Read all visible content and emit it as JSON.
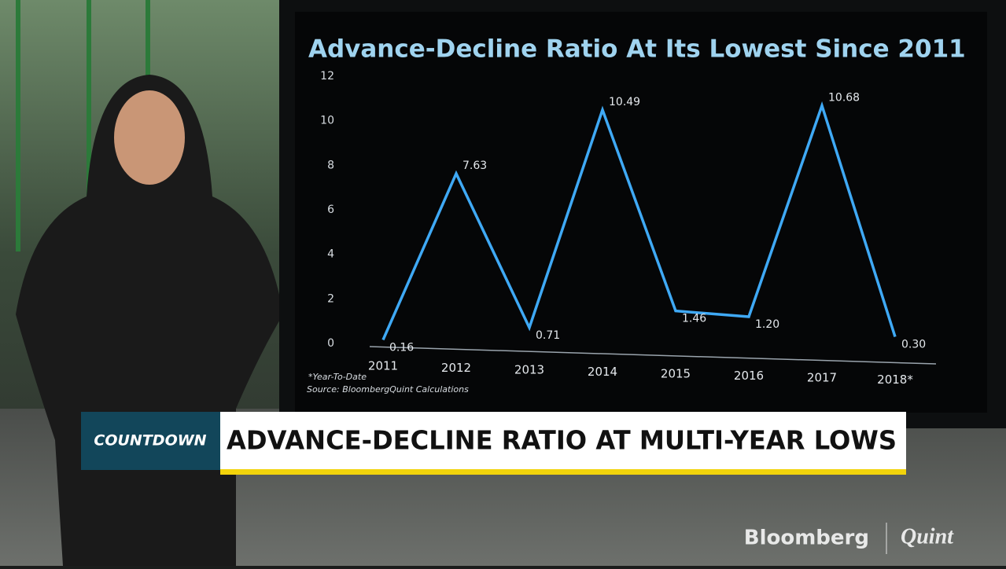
{
  "chart_data": {
    "type": "line",
    "title": "Advance-Decline Ratio At Its Lowest Since 2011",
    "categories": [
      "2011",
      "2012",
      "2013",
      "2014",
      "2015",
      "2016",
      "2017",
      "2018*"
    ],
    "series": [
      {
        "color": "#3fa9f5",
        "values": [
          0.16,
          7.63,
          0.71,
          10.49,
          1.46,
          1.2,
          10.68,
          0.3
        ],
        "value_labels": [
          "0.16",
          "7.63",
          "0.71",
          "10.49",
          "1.46",
          "1.20",
          "10.68",
          "0.30"
        ]
      }
    ],
    "ylim": [
      0,
      12
    ],
    "yticks": [
      0,
      2,
      4,
      6,
      8,
      10,
      12
    ],
    "grid": false,
    "notes": [
      "*Year-To-Date",
      "Source: BloombergQuint Calculations"
    ]
  },
  "banner": {
    "tag": "COUNTDOWN",
    "headline": "ADVANCE-DECLINE RATIO AT MULTI-YEAR LOWS"
  },
  "logo": {
    "left": "Bloomberg",
    "right": "Quint"
  }
}
